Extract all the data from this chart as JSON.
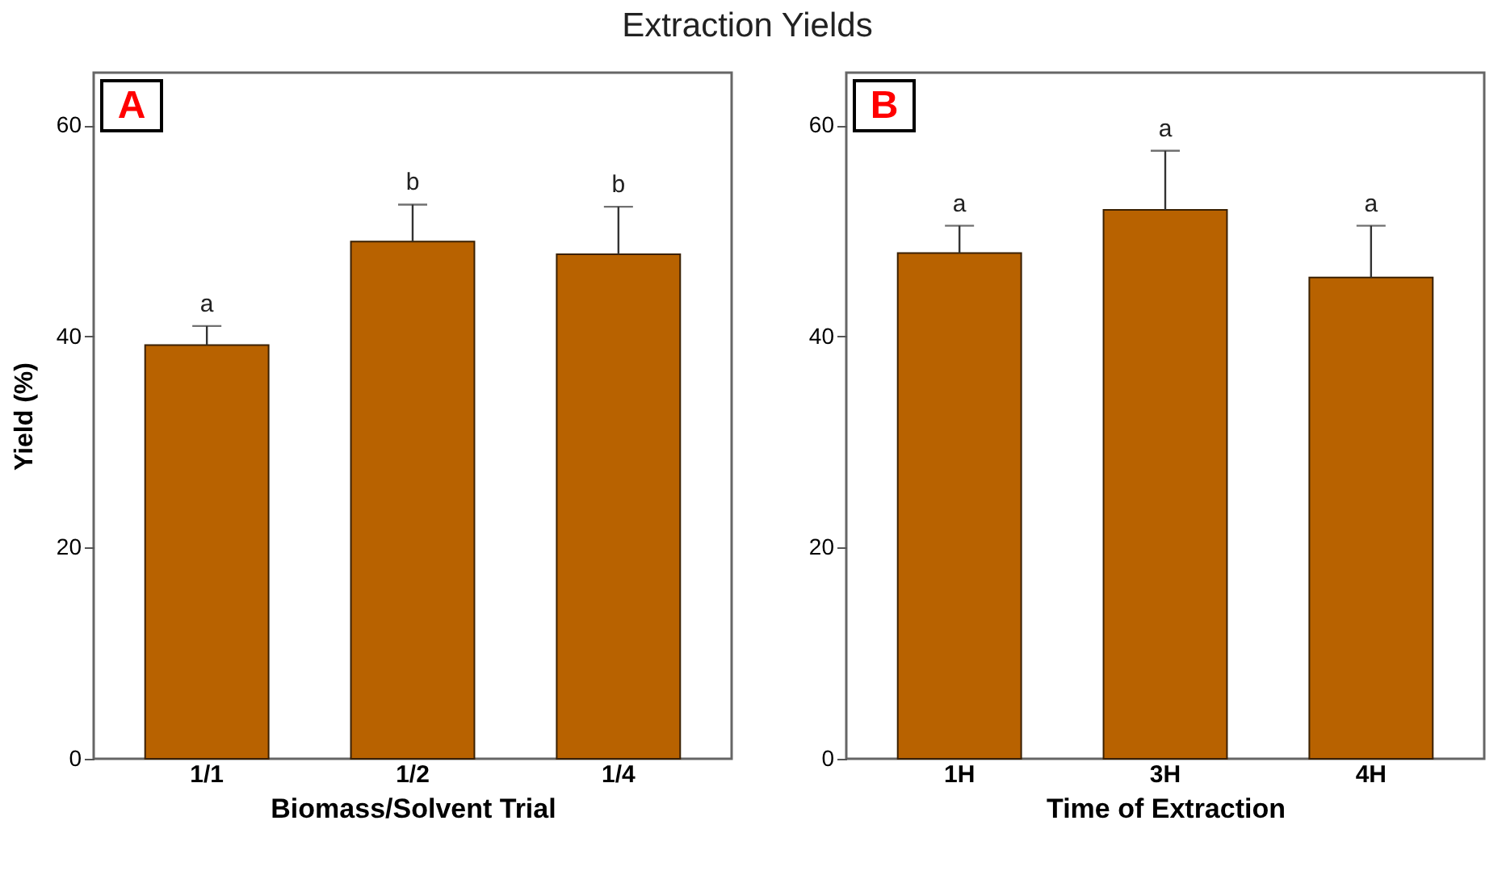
{
  "chart_data": [
    {
      "type": "bar",
      "title": "Extraction Yields",
      "xlabel": "Biomass/Solvent Trial",
      "ylabel": "Yield (%)",
      "categories": [
        "1/1",
        "1/2",
        "1/4"
      ],
      "values": [
        39.2,
        49.0,
        47.8
      ],
      "color": "#b86200",
      "errors": [
        [
          39.2,
          41.0
        ],
        [
          49.0,
          52.5
        ],
        [
          47.8,
          52.3
        ]
      ],
      "ylim": [
        0,
        65
      ],
      "yticks": [
        0,
        20,
        40,
        60
      ],
      "grid": false,
      "annotations": [
        "A",
        {
          "text": "a",
          "x": "1/1",
          "y": 41.0
        },
        {
          "text": "b",
          "x": "1/2",
          "y": 52.5
        },
        {
          "text": "b",
          "x": "1/4",
          "y": 52.3
        }
      ]
    },
    {
      "type": "bar",
      "xlabel": "Time of Extraction",
      "categories": [
        "1H",
        "3H",
        "4H"
      ],
      "values": [
        47.9,
        52.0,
        45.6
      ],
      "color": "#b86200",
      "errors": [
        [
          47.9,
          50.5
        ],
        [
          52.0,
          57.6
        ],
        [
          45.6,
          50.5
        ]
      ],
      "ylim": [
        0,
        65
      ],
      "yticks": [
        0,
        20,
        40,
        60
      ],
      "grid": false,
      "annotations": [
        "B",
        {
          "text": "a",
          "x": "1H",
          "y": 50.5
        },
        {
          "text": "a",
          "x": "3H",
          "y": 57.6
        },
        {
          "text": "a",
          "x": "4H",
          "y": 50.5
        }
      ]
    }
  ]
}
